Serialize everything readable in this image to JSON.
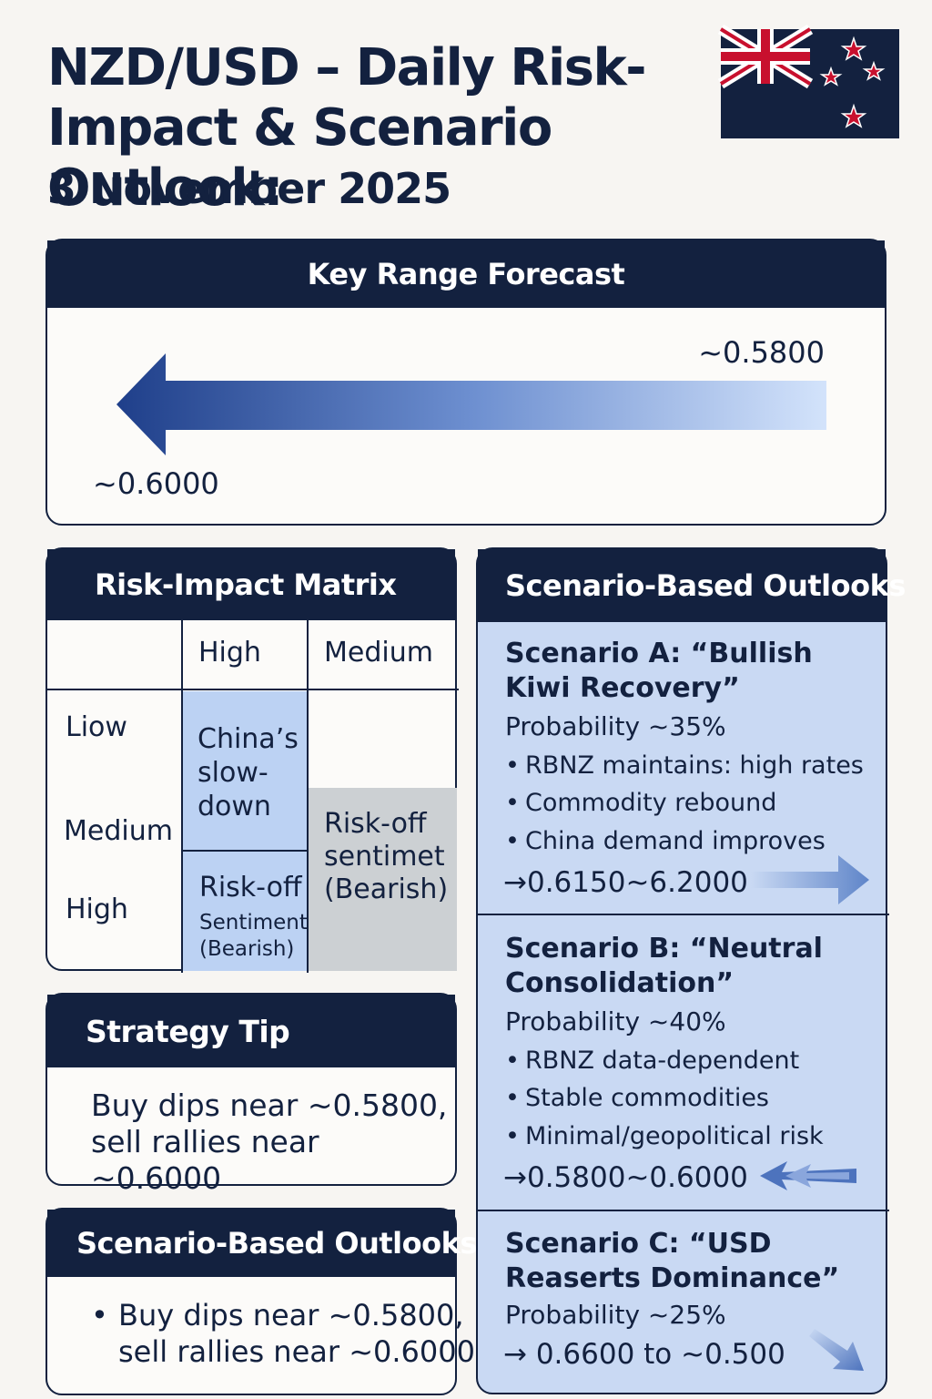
{
  "header": {
    "title": "NZD/USD – Daily Risk-Impact & Scenario Outlook:",
    "subtitle": "3 November 2025",
    "flag_icon": "new-zealand-flag-icon"
  },
  "key_range": {
    "heading": "Key Range Forecast",
    "upper_label": "~0.5800",
    "lower_label": "~0.6000"
  },
  "risk_matrix": {
    "heading": "Risk-Impact Matrix",
    "col_headers": [
      "High",
      "Medium"
    ],
    "row_labels": [
      "Liow",
      "Medium",
      "High"
    ],
    "cell_china": "China’s slow-down",
    "cell_riskoff_main": "Risk-off",
    "cell_riskoff_sub": "Sentiment (Bearish)",
    "cell_riskoff_medium": "Risk-off sentimet (Bearish)"
  },
  "strategy_tip": {
    "heading": "Strategy Tip",
    "line1": "Buy dips near ~0.5800,",
    "line2": "sell rallies near ~0.6000"
  },
  "scenario_small": {
    "heading": "Scenario-Based Outlooks",
    "bullet": "•",
    "line1": "Buy dips near ~0.5800,",
    "line2": "sell rallies near ~0.6000"
  },
  "scenarios": {
    "heading": "Scenario-Based Outlooks",
    "a": {
      "title": "Scenario A: “Bullish Kiwi Recovery”",
      "probability": "Probability ~35%",
      "bullets": [
        "RBNZ maintains: high rates",
        "Commodity rebound",
        "China demand improves"
      ],
      "range": "→0.6150~6.2000"
    },
    "b": {
      "title": "Scenario B: “Neutral Consolidation”",
      "probability": "Probability ~40%",
      "bullets": [
        "RBNZ data-dependent",
        "Stable commodities",
        "Minimal/geopolitical risk"
      ],
      "range": "→0.5800~0.6000"
    },
    "c": {
      "title": "Scenario C: “USD Reaserts Dominance”",
      "probability": "Probability ~25%",
      "range": "→ 0.6600 to ~0.500"
    }
  },
  "colors": {
    "navy": "#13213f",
    "light_blue": "#c9d9f3",
    "cell_blue": "#bcd2f3",
    "cell_grey": "#ccd0d3"
  }
}
